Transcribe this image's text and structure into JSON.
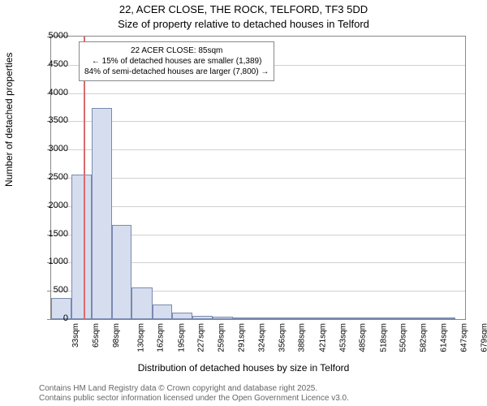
{
  "chart": {
    "type": "histogram",
    "title_line1": "22, ACER CLOSE, THE ROCK, TELFORD, TF3 5DD",
    "title_line2": "Size of property relative to detached houses in Telford",
    "ylabel": "Number of detached properties",
    "xlabel": "Distribution of detached houses by size in Telford",
    "ylim": [
      0,
      5000
    ],
    "ytick_step": 500,
    "yticks": [
      0,
      500,
      1000,
      1500,
      2000,
      2500,
      3000,
      3500,
      4000,
      4500,
      5000
    ],
    "x_range": [
      33,
      695
    ],
    "x_tick_labels": [
      "33sqm",
      "65sqm",
      "98sqm",
      "130sqm",
      "162sqm",
      "195sqm",
      "227sqm",
      "259sqm",
      "291sqm",
      "324sqm",
      "356sqm",
      "388sqm",
      "421sqm",
      "453sqm",
      "485sqm",
      "518sqm",
      "550sqm",
      "582sqm",
      "614sqm",
      "647sqm",
      "679sqm"
    ],
    "x_tick_positions": [
      33,
      65,
      98,
      130,
      162,
      195,
      227,
      259,
      291,
      324,
      356,
      388,
      421,
      453,
      485,
      518,
      550,
      582,
      614,
      647,
      679
    ],
    "bars": [
      {
        "x_start": 33,
        "x_end": 65,
        "value": 370
      },
      {
        "x_start": 65,
        "x_end": 98,
        "value": 2560
      },
      {
        "x_start": 98,
        "x_end": 130,
        "value": 3735
      },
      {
        "x_start": 130,
        "x_end": 162,
        "value": 1660
      },
      {
        "x_start": 162,
        "x_end": 195,
        "value": 560
      },
      {
        "x_start": 195,
        "x_end": 227,
        "value": 255
      },
      {
        "x_start": 227,
        "x_end": 259,
        "value": 115
      },
      {
        "x_start": 259,
        "x_end": 291,
        "value": 60
      },
      {
        "x_start": 291,
        "x_end": 324,
        "value": 40
      },
      {
        "x_start": 324,
        "x_end": 356,
        "value": 20
      },
      {
        "x_start": 356,
        "x_end": 388,
        "value": 10
      },
      {
        "x_start": 388,
        "x_end": 421,
        "value": 6
      },
      {
        "x_start": 421,
        "x_end": 453,
        "value": 4
      },
      {
        "x_start": 453,
        "x_end": 485,
        "value": 3
      },
      {
        "x_start": 485,
        "x_end": 518,
        "value": 2
      },
      {
        "x_start": 518,
        "x_end": 550,
        "value": 2
      },
      {
        "x_start": 550,
        "x_end": 582,
        "value": 1
      },
      {
        "x_start": 582,
        "x_end": 614,
        "value": 1
      },
      {
        "x_start": 614,
        "x_end": 647,
        "value": 1
      },
      {
        "x_start": 647,
        "x_end": 679,
        "value": 1
      }
    ],
    "bar_fill_color": "#d5ddef",
    "bar_border_color": "#7a8ab0",
    "grid_color": "#d0d0d0",
    "background_color": "#ffffff",
    "border_color": "#888888",
    "marker": {
      "x_value": 85,
      "color": "#d96b6b"
    },
    "info_box": {
      "line1": "22 ACER CLOSE: 85sqm",
      "line2": "← 15% of detached houses are smaller (1,389)",
      "line3": "84% of semi-detached houses are larger (7,800) →",
      "title_fontsize": 10
    },
    "footer_line1": "Contains HM Land Registry data © Crown copyright and database right 2025.",
    "footer_line2": "Contains public sector information licensed under the Open Government Licence v3.0.",
    "footer_color": "#666666",
    "title_fontsize": 13,
    "label_fontsize": 12,
    "tick_fontsize": 11
  }
}
